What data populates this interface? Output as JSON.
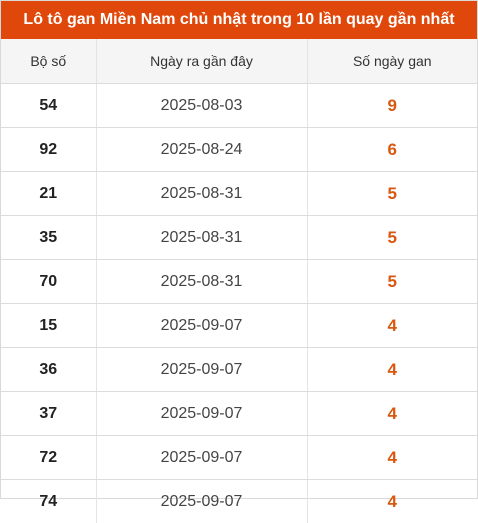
{
  "title": "Lô tô gan Miền Nam chủ nhật trong 10 lần quay gần nhất",
  "columns": [
    "Bộ số",
    "Ngày ra gần đây",
    "Số ngày gan"
  ],
  "accent_color": "#e0480b",
  "value_color": "#d8580f",
  "rows": [
    {
      "number": "54",
      "date": "2025-08-03",
      "days": "9"
    },
    {
      "number": "92",
      "date": "2025-08-24",
      "days": "6"
    },
    {
      "number": "21",
      "date": "2025-08-31",
      "days": "5"
    },
    {
      "number": "35",
      "date": "2025-08-31",
      "days": "5"
    },
    {
      "number": "70",
      "date": "2025-08-31",
      "days": "5"
    },
    {
      "number": "15",
      "date": "2025-09-07",
      "days": "4"
    },
    {
      "number": "36",
      "date": "2025-09-07",
      "days": "4"
    },
    {
      "number": "37",
      "date": "2025-09-07",
      "days": "4"
    },
    {
      "number": "72",
      "date": "2025-09-07",
      "days": "4"
    },
    {
      "number": "74",
      "date": "2025-09-07",
      "days": "4"
    }
  ]
}
